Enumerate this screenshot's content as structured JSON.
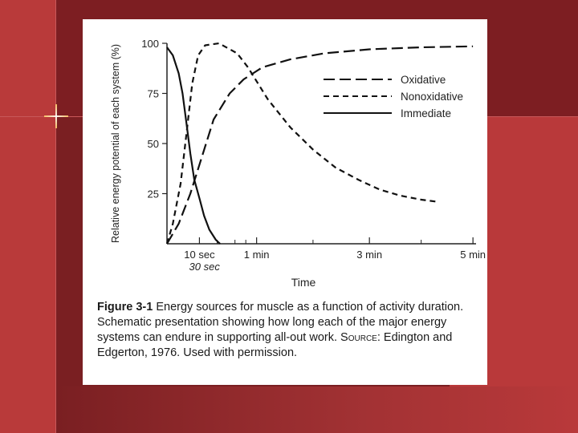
{
  "chart_data": {
    "type": "line",
    "ylabel": "Relative energy potential of each system (%)",
    "xlabel": "Time",
    "y_ticks": [
      "100",
      "75",
      "50",
      "25"
    ],
    "x_ticks": [
      "10 sec",
      "1 min",
      "3 min",
      "5 min"
    ],
    "x_tick_extra": "30 sec",
    "ylim": [
      0,
      100
    ],
    "grid": false,
    "legend_position": "top-right",
    "series": [
      {
        "name": "Oxidative",
        "style": "long-dash",
        "points": [
          [
            0,
            0
          ],
          [
            0.06,
            10
          ],
          [
            0.12,
            25
          ],
          [
            0.2,
            45
          ],
          [
            0.3,
            62
          ],
          [
            0.45,
            75
          ],
          [
            0.7,
            82
          ],
          [
            1.1,
            88
          ],
          [
            1.6,
            92
          ],
          [
            2.2,
            95
          ],
          [
            3,
            97
          ],
          [
            4,
            98
          ],
          [
            5,
            98.5
          ]
        ]
      },
      {
        "name": "Nonoxidative",
        "style": "short-dash",
        "points": [
          [
            0,
            0
          ],
          [
            0.03,
            10
          ],
          [
            0.07,
            30
          ],
          [
            0.1,
            55
          ],
          [
            0.13,
            80
          ],
          [
            0.16,
            94
          ],
          [
            0.22,
            99
          ],
          [
            0.35,
            100
          ],
          [
            0.55,
            95
          ],
          [
            0.8,
            88
          ],
          [
            1.2,
            72
          ],
          [
            1.6,
            58
          ],
          [
            2,
            47
          ],
          [
            2.4,
            38
          ],
          [
            2.8,
            32
          ],
          [
            3.2,
            27
          ],
          [
            3.6,
            24
          ],
          [
            4,
            22
          ],
          [
            4.3,
            21
          ]
        ]
      },
      {
        "name": "Immediate",
        "style": "solid",
        "points": [
          [
            0,
            98
          ],
          [
            0.03,
            94
          ],
          [
            0.06,
            85
          ],
          [
            0.08,
            75
          ],
          [
            0.1,
            60
          ],
          [
            0.12,
            45
          ],
          [
            0.14,
            32
          ],
          [
            0.17,
            22
          ],
          [
            0.21,
            14
          ],
          [
            0.26,
            7
          ],
          [
            0.32,
            2
          ],
          [
            0.36,
            0
          ]
        ]
      }
    ]
  },
  "caption": {
    "label": "Figure 3-1",
    "text": "Energy sources for muscle as a function of activity duration. Schematic presentation showing how long each of the major energy systems can endure in supporting all-out work.",
    "source_label": "Source:",
    "source_text": "Edington and Edgerton, 1976. Used with permission."
  }
}
